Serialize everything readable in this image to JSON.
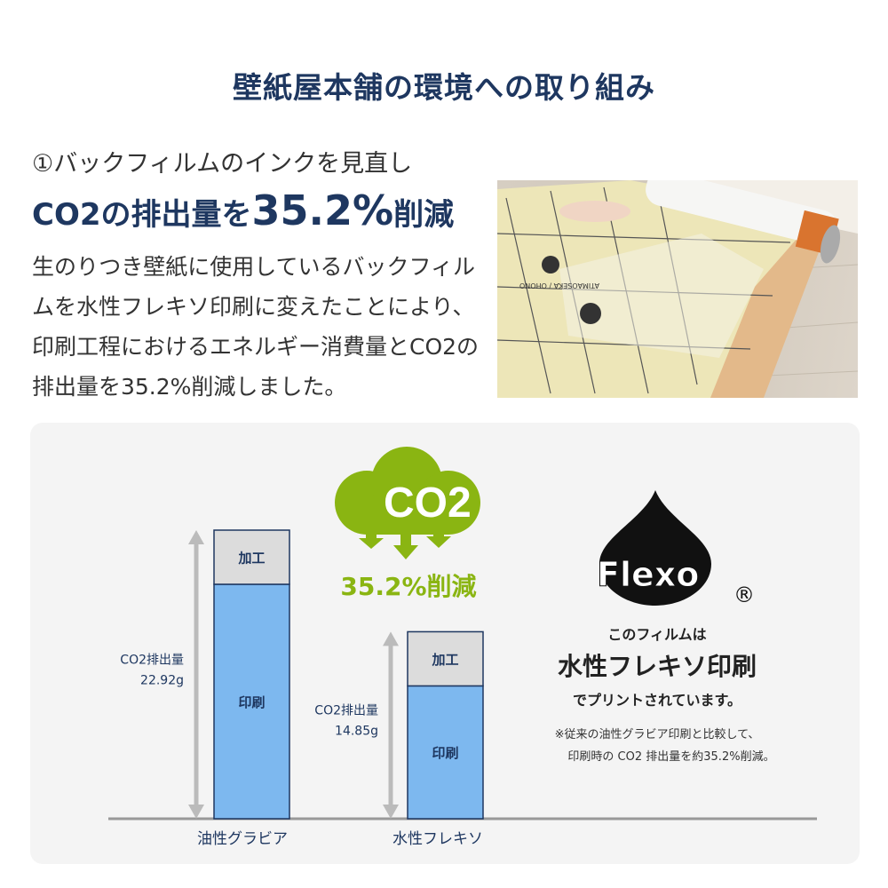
{
  "title": "壁紙屋本舗の環境への取り組み",
  "headline": {
    "line1": "①バックフィルムのインクを見直し",
    "line2_prefix": "CO2の排出量を",
    "line2_value": "35.2%",
    "line2_suffix": "削減"
  },
  "description": "生のりつき壁紙に使用しているバックフィルムを水性フレキソ印刷に変えたことにより、印刷工程におけるエネルギー消費量とCO2の排出量を35.2%削減しました。",
  "photo": {
    "print_text": "ATIMAOSEKA / OHONO"
  },
  "cloud": {
    "label": "CO2",
    "reduction": "35.2%削減",
    "color": "#8ab512"
  },
  "flexo": {
    "logo": "Flexo",
    "registered": "®",
    "line1": "このフィルムは",
    "line2": "水性フレキソ印刷",
    "line3": "でプリントされています。",
    "note1": "※従来の油性グラビア印刷と比較して、",
    "note2": "印刷時の CO2 排出量を約35.2%削減。"
  },
  "chart_data": {
    "type": "bar",
    "stacked": true,
    "categories": [
      "油性グラビア",
      "水性フレキソ"
    ],
    "totals": [
      22.92,
      14.85
    ],
    "total_label": "CO2排出量",
    "total_labels": [
      "22.92g",
      "14.85g"
    ],
    "series": [
      {
        "name": "印刷",
        "values": [
          18.62,
          10.55
        ],
        "color": "#7db8ef"
      },
      {
        "name": "加工",
        "values": [
          4.3,
          4.3
        ],
        "color": "#dcdcdc"
      }
    ],
    "ylim": [
      0,
      23
    ],
    "grid": false,
    "legend": "none"
  }
}
